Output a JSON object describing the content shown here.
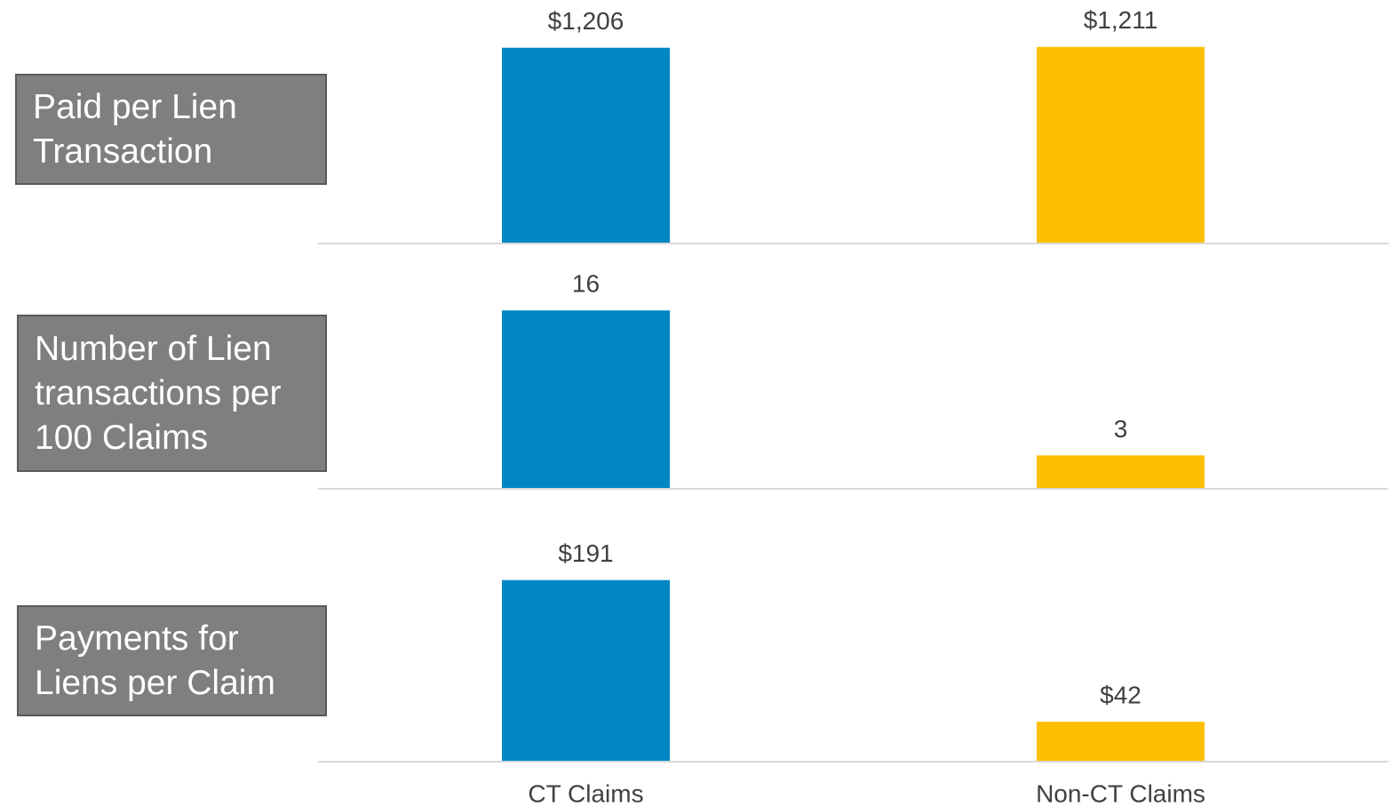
{
  "chart_data": [
    {
      "type": "bar",
      "title": "Paid per Lien Transaction",
      "values": [
        1206,
        1211
      ],
      "value_labels": [
        "$1,206",
        "$1,211"
      ],
      "colors": [
        "#0087c4",
        "#fcbf00"
      ],
      "ylim": [
        0,
        1500
      ]
    },
    {
      "type": "bar",
      "title": "Number of Lien transactions per 100 Claims",
      "values": [
        16,
        3
      ],
      "colors": [
        "#0087c4",
        "#fcbf00"
      ],
      "ylim": [
        0,
        22
      ]
    },
    {
      "type": "bar",
      "title": "Payments for Liens per Claim",
      "categories": [
        "CT Claims",
        "Non-CT Claims"
      ],
      "values": [
        191,
        42
      ],
      "value_labels": [
        "$191",
        "$42"
      ],
      "colors": [
        "#0087c4",
        "#fcbf00"
      ],
      "ylim": [
        0,
        287
      ]
    }
  ]
}
